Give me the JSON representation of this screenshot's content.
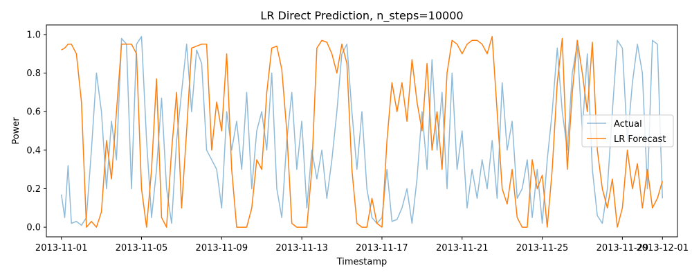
{
  "chart_data": {
    "type": "line",
    "title": "LR Direct Prediction, n_steps=10000",
    "xlabel": "Timestamp",
    "ylabel": "Power",
    "xlim": [
      "2013-10-31 06:00",
      "2013-12-01 18:00"
    ],
    "ylim": [
      -0.05,
      1.05
    ],
    "xticks": [
      "2013-11-01",
      "2013-11-05",
      "2013-11-09",
      "2013-11-13",
      "2013-11-17",
      "2013-11-21",
      "2013-11-25",
      "2013-11-29",
      "2013-12-01"
    ],
    "yticks": [
      0.0,
      0.2,
      0.4,
      0.6,
      0.8,
      1.0
    ],
    "ytick_labels": [
      "0.0",
      "0.2",
      "0.4",
      "0.6",
      "0.8",
      "1.0"
    ],
    "legend": {
      "placement": "center-right"
    },
    "grid": false,
    "series": [
      {
        "name": "Actual",
        "color": "#1f77b4",
        "opacity": 0.5,
        "points": [
          [
            "2013-11-01 00:00",
            0.17
          ],
          [
            "2013-11-01 04:00",
            0.05
          ],
          [
            "2013-11-01 08:00",
            0.32
          ],
          [
            "2013-11-01 12:00",
            0.02
          ],
          [
            "2013-11-01 18:00",
            0.03
          ],
          [
            "2013-11-02 00:00",
            0.01
          ],
          [
            "2013-11-02 06:00",
            0.05
          ],
          [
            "2013-11-02 12:00",
            0.4
          ],
          [
            "2013-11-02 18:00",
            0.8
          ],
          [
            "2013-11-03 00:00",
            0.6
          ],
          [
            "2013-11-03 06:00",
            0.2
          ],
          [
            "2013-11-03 12:00",
            0.55
          ],
          [
            "2013-11-03 18:00",
            0.35
          ],
          [
            "2013-11-04 00:00",
            0.98
          ],
          [
            "2013-11-04 06:00",
            0.95
          ],
          [
            "2013-11-04 12:00",
            0.2
          ],
          [
            "2013-11-04 18:00",
            0.95
          ],
          [
            "2013-11-05 00:00",
            0.99
          ],
          [
            "2013-11-05 06:00",
            0.45
          ],
          [
            "2013-11-05 12:00",
            0.05
          ],
          [
            "2013-11-05 18:00",
            0.3
          ],
          [
            "2013-11-06 00:00",
            0.67
          ],
          [
            "2013-11-06 06:00",
            0.2
          ],
          [
            "2013-11-06 12:00",
            0.02
          ],
          [
            "2013-11-06 18:00",
            0.45
          ],
          [
            "2013-11-07 00:00",
            0.7
          ],
          [
            "2013-11-07 06:00",
            0.95
          ],
          [
            "2013-11-07 12:00",
            0.6
          ],
          [
            "2013-11-07 18:00",
            0.92
          ],
          [
            "2013-11-08 00:00",
            0.85
          ],
          [
            "2013-11-08 06:00",
            0.4
          ],
          [
            "2013-11-08 12:00",
            0.35
          ],
          [
            "2013-11-08 18:00",
            0.3
          ],
          [
            "2013-11-09 00:00",
            0.1
          ],
          [
            "2013-11-09 06:00",
            0.6
          ],
          [
            "2013-11-09 12:00",
            0.4
          ],
          [
            "2013-11-09 18:00",
            0.55
          ],
          [
            "2013-11-10 00:00",
            0.3
          ],
          [
            "2013-11-10 06:00",
            0.7
          ],
          [
            "2013-11-10 12:00",
            0.2
          ],
          [
            "2013-11-10 18:00",
            0.5
          ],
          [
            "2013-11-11 00:00",
            0.6
          ],
          [
            "2013-11-11 06:00",
            0.4
          ],
          [
            "2013-11-11 12:00",
            0.8
          ],
          [
            "2013-11-11 18:00",
            0.2
          ],
          [
            "2013-11-12 00:00",
            0.05
          ],
          [
            "2013-11-12 06:00",
            0.45
          ],
          [
            "2013-11-12 12:00",
            0.7
          ],
          [
            "2013-11-12 18:00",
            0.3
          ],
          [
            "2013-11-13 00:00",
            0.55
          ],
          [
            "2013-11-13 06:00",
            0.1
          ],
          [
            "2013-11-13 12:00",
            0.4
          ],
          [
            "2013-11-13 18:00",
            0.25
          ],
          [
            "2013-11-14 00:00",
            0.4
          ],
          [
            "2013-11-14 06:00",
            0.15
          ],
          [
            "2013-11-14 12:00",
            0.35
          ],
          [
            "2013-11-14 18:00",
            0.6
          ],
          [
            "2013-11-15 00:00",
            0.9
          ],
          [
            "2013-11-15 06:00",
            0.95
          ],
          [
            "2013-11-15 12:00",
            0.6
          ],
          [
            "2013-11-15 18:00",
            0.3
          ],
          [
            "2013-11-16 00:00",
            0.6
          ],
          [
            "2013-11-16 06:00",
            0.2
          ],
          [
            "2013-11-16 12:00",
            0.05
          ],
          [
            "2013-11-16 18:00",
            0.02
          ],
          [
            "2013-11-17 00:00",
            0.05
          ],
          [
            "2013-11-17 06:00",
            0.3
          ],
          [
            "2013-11-17 12:00",
            0.03
          ],
          [
            "2013-11-17 18:00",
            0.04
          ],
          [
            "2013-11-18 00:00",
            0.1
          ],
          [
            "2013-11-18 06:00",
            0.2
          ],
          [
            "2013-11-18 12:00",
            0.02
          ],
          [
            "2013-11-18 18:00",
            0.25
          ],
          [
            "2013-11-19 00:00",
            0.6
          ],
          [
            "2013-11-19 06:00",
            0.3
          ],
          [
            "2013-11-19 12:00",
            0.87
          ],
          [
            "2013-11-19 18:00",
            0.4
          ],
          [
            "2013-11-20 00:00",
            0.7
          ],
          [
            "2013-11-20 06:00",
            0.2
          ],
          [
            "2013-11-20 12:00",
            0.8
          ],
          [
            "2013-11-20 18:00",
            0.3
          ],
          [
            "2013-11-21 00:00",
            0.5
          ],
          [
            "2013-11-21 06:00",
            0.1
          ],
          [
            "2013-11-21 12:00",
            0.3
          ],
          [
            "2013-11-21 18:00",
            0.15
          ],
          [
            "2013-11-22 00:00",
            0.35
          ],
          [
            "2013-11-22 06:00",
            0.2
          ],
          [
            "2013-11-22 12:00",
            0.45
          ],
          [
            "2013-11-22 18:00",
            0.15
          ],
          [
            "2013-11-23 00:00",
            0.75
          ],
          [
            "2013-11-23 06:00",
            0.4
          ],
          [
            "2013-11-23 12:00",
            0.55
          ],
          [
            "2013-11-23 18:00",
            0.15
          ],
          [
            "2013-11-24 00:00",
            0.2
          ],
          [
            "2013-11-24 06:00",
            0.35
          ],
          [
            "2013-11-24 12:00",
            0.05
          ],
          [
            "2013-11-24 18:00",
            0.3
          ],
          [
            "2013-11-25 00:00",
            0.02
          ],
          [
            "2013-11-25 06:00",
            0.35
          ],
          [
            "2013-11-25 12:00",
            0.6
          ],
          [
            "2013-11-25 18:00",
            0.93
          ],
          [
            "2013-11-26 00:00",
            0.6
          ],
          [
            "2013-11-26 06:00",
            0.4
          ],
          [
            "2013-11-26 12:00",
            0.8
          ],
          [
            "2013-11-26 18:00",
            0.95
          ],
          [
            "2013-11-27 00:00",
            0.5
          ],
          [
            "2013-11-27 06:00",
            0.9
          ],
          [
            "2013-11-27 12:00",
            0.3
          ],
          [
            "2013-11-27 18:00",
            0.06
          ],
          [
            "2013-11-28 00:00",
            0.02
          ],
          [
            "2013-11-28 06:00",
            0.2
          ],
          [
            "2013-11-28 12:00",
            0.6
          ],
          [
            "2013-11-28 18:00",
            0.97
          ],
          [
            "2013-11-29 00:00",
            0.93
          ],
          [
            "2013-11-29 06:00",
            0.45
          ],
          [
            "2013-11-29 12:00",
            0.75
          ],
          [
            "2013-11-29 18:00",
            0.95
          ],
          [
            "2013-11-30 00:00",
            0.8
          ],
          [
            "2013-11-30 06:00",
            0.2
          ],
          [
            "2013-11-30 12:00",
            0.97
          ],
          [
            "2013-11-30 18:00",
            0.95
          ],
          [
            "2013-12-01 00:00",
            0.15
          ]
        ]
      },
      {
        "name": "LR Forecast",
        "color": "#ff7f0e",
        "opacity": 1,
        "points": [
          [
            "2013-11-01 00:00",
            0.92
          ],
          [
            "2013-11-01 04:00",
            0.93
          ],
          [
            "2013-11-01 08:00",
            0.95
          ],
          [
            "2013-11-01 12:00",
            0.95
          ],
          [
            "2013-11-01 18:00",
            0.9
          ],
          [
            "2013-11-02 00:00",
            0.65
          ],
          [
            "2013-11-02 06:00",
            0.0
          ],
          [
            "2013-11-02 12:00",
            0.03
          ],
          [
            "2013-11-02 18:00",
            0.0
          ],
          [
            "2013-11-03 00:00",
            0.08
          ],
          [
            "2013-11-03 06:00",
            0.45
          ],
          [
            "2013-11-03 12:00",
            0.25
          ],
          [
            "2013-11-03 18:00",
            0.6
          ],
          [
            "2013-11-04 00:00",
            0.95
          ],
          [
            "2013-11-04 06:00",
            0.95
          ],
          [
            "2013-11-04 12:00",
            0.95
          ],
          [
            "2013-11-04 18:00",
            0.9
          ],
          [
            "2013-11-05 00:00",
            0.2
          ],
          [
            "2013-11-05 06:00",
            0.0
          ],
          [
            "2013-11-05 12:00",
            0.3
          ],
          [
            "2013-11-05 18:00",
            0.77
          ],
          [
            "2013-11-06 00:00",
            0.05
          ],
          [
            "2013-11-06 06:00",
            0.0
          ],
          [
            "2013-11-06 12:00",
            0.4
          ],
          [
            "2013-11-06 18:00",
            0.7
          ],
          [
            "2013-11-07 00:00",
            0.1
          ],
          [
            "2013-11-07 06:00",
            0.5
          ],
          [
            "2013-11-07 12:00",
            0.93
          ],
          [
            "2013-11-07 18:00",
            0.94
          ],
          [
            "2013-11-08 00:00",
            0.95
          ],
          [
            "2013-11-08 06:00",
            0.95
          ],
          [
            "2013-11-08 12:00",
            0.4
          ],
          [
            "2013-11-08 18:00",
            0.65
          ],
          [
            "2013-11-09 00:00",
            0.5
          ],
          [
            "2013-11-09 06:00",
            0.9
          ],
          [
            "2013-11-09 12:00",
            0.3
          ],
          [
            "2013-11-09 18:00",
            0.0
          ],
          [
            "2013-11-10 00:00",
            0.0
          ],
          [
            "2013-11-10 06:00",
            0.0
          ],
          [
            "2013-11-10 12:00",
            0.1
          ],
          [
            "2013-11-10 18:00",
            0.35
          ],
          [
            "2013-11-11 00:00",
            0.3
          ],
          [
            "2013-11-11 06:00",
            0.7
          ],
          [
            "2013-11-11 12:00",
            0.93
          ],
          [
            "2013-11-11 18:00",
            0.94
          ],
          [
            "2013-11-12 00:00",
            0.82
          ],
          [
            "2013-11-12 06:00",
            0.5
          ],
          [
            "2013-11-12 12:00",
            0.02
          ],
          [
            "2013-11-12 18:00",
            0.0
          ],
          [
            "2013-11-13 00:00",
            0.0
          ],
          [
            "2013-11-13 06:00",
            0.0
          ],
          [
            "2013-11-13 12:00",
            0.3
          ],
          [
            "2013-11-13 18:00",
            0.93
          ],
          [
            "2013-11-14 00:00",
            0.97
          ],
          [
            "2013-11-14 06:00",
            0.96
          ],
          [
            "2013-11-14 12:00",
            0.9
          ],
          [
            "2013-11-14 18:00",
            0.8
          ],
          [
            "2013-11-15 00:00",
            0.95
          ],
          [
            "2013-11-15 06:00",
            0.85
          ],
          [
            "2013-11-15 12:00",
            0.3
          ],
          [
            "2013-11-15 18:00",
            0.02
          ],
          [
            "2013-11-16 00:00",
            0.0
          ],
          [
            "2013-11-16 06:00",
            0.0
          ],
          [
            "2013-11-16 12:00",
            0.15
          ],
          [
            "2013-11-16 18:00",
            0.02
          ],
          [
            "2013-11-17 00:00",
            0.0
          ],
          [
            "2013-11-17 06:00",
            0.45
          ],
          [
            "2013-11-17 12:00",
            0.75
          ],
          [
            "2013-11-17 18:00",
            0.6
          ],
          [
            "2013-11-18 00:00",
            0.75
          ],
          [
            "2013-11-18 06:00",
            0.55
          ],
          [
            "2013-11-18 12:00",
            0.87
          ],
          [
            "2013-11-18 18:00",
            0.65
          ],
          [
            "2013-11-19 00:00",
            0.5
          ],
          [
            "2013-11-19 06:00",
            0.85
          ],
          [
            "2013-11-19 12:00",
            0.4
          ],
          [
            "2013-11-19 18:00",
            0.6
          ],
          [
            "2013-11-20 00:00",
            0.3
          ],
          [
            "2013-11-20 06:00",
            0.8
          ],
          [
            "2013-11-20 12:00",
            0.97
          ],
          [
            "2013-11-20 18:00",
            0.95
          ],
          [
            "2013-11-21 00:00",
            0.9
          ],
          [
            "2013-11-21 06:00",
            0.95
          ],
          [
            "2013-11-21 12:00",
            0.97
          ],
          [
            "2013-11-21 18:00",
            0.97
          ],
          [
            "2013-11-22 00:00",
            0.95
          ],
          [
            "2013-11-22 06:00",
            0.9
          ],
          [
            "2013-11-22 12:00",
            0.99
          ],
          [
            "2013-11-22 18:00",
            0.6
          ],
          [
            "2013-11-23 00:00",
            0.2
          ],
          [
            "2013-11-23 06:00",
            0.12
          ],
          [
            "2013-11-23 12:00",
            0.3
          ],
          [
            "2013-11-23 18:00",
            0.05
          ],
          [
            "2013-11-24 00:00",
            0.0
          ],
          [
            "2013-11-24 06:00",
            0.0
          ],
          [
            "2013-11-24 12:00",
            0.35
          ],
          [
            "2013-11-24 18:00",
            0.2
          ],
          [
            "2013-11-25 00:00",
            0.27
          ],
          [
            "2013-11-25 06:00",
            0.0
          ],
          [
            "2013-11-25 12:00",
            0.3
          ],
          [
            "2013-11-25 18:00",
            0.75
          ],
          [
            "2013-11-26 00:00",
            0.98
          ],
          [
            "2013-11-26 06:00",
            0.3
          ],
          [
            "2013-11-26 12:00",
            0.7
          ],
          [
            "2013-11-26 18:00",
            0.97
          ],
          [
            "2013-11-27 00:00",
            0.8
          ],
          [
            "2013-11-27 06:00",
            0.6
          ],
          [
            "2013-11-27 12:00",
            0.96
          ],
          [
            "2013-11-27 18:00",
            0.4
          ],
          [
            "2013-11-28 00:00",
            0.2
          ],
          [
            "2013-11-28 06:00",
            0.1
          ],
          [
            "2013-11-28 12:00",
            0.25
          ],
          [
            "2013-11-28 18:00",
            0.0
          ],
          [
            "2013-11-29 00:00",
            0.1
          ],
          [
            "2013-11-29 06:00",
            0.4
          ],
          [
            "2013-11-29 12:00",
            0.2
          ],
          [
            "2013-11-29 18:00",
            0.33
          ],
          [
            "2013-11-30 00:00",
            0.1
          ],
          [
            "2013-11-30 06:00",
            0.3
          ],
          [
            "2013-11-30 12:00",
            0.1
          ],
          [
            "2013-11-30 18:00",
            0.15
          ],
          [
            "2013-12-01 00:00",
            0.24
          ]
        ]
      }
    ]
  }
}
